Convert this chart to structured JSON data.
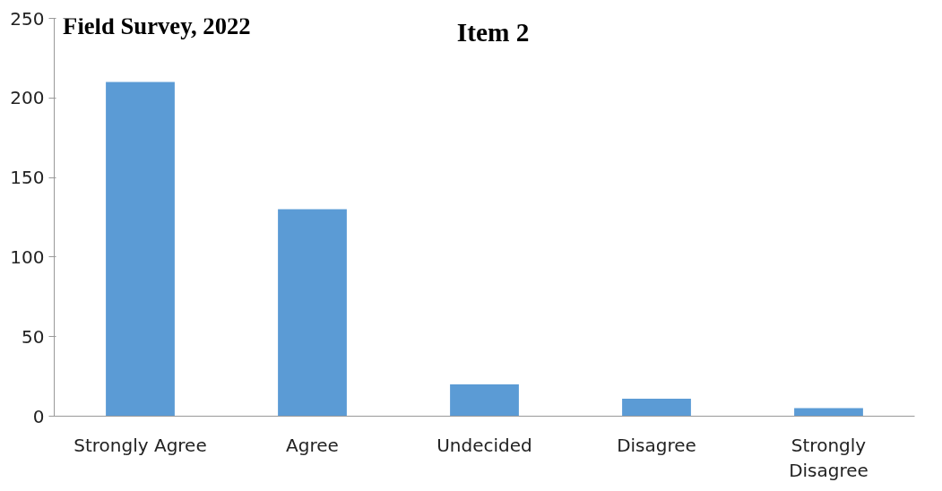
{
  "chart_data": {
    "type": "bar",
    "title": "Item 2",
    "annotations": [
      "Field Survey, 2022"
    ],
    "categories": [
      "Strongly Agree",
      "Agree",
      "Undecided",
      "Disagree",
      "Strongly Disagree"
    ],
    "values": [
      210,
      130,
      20,
      11,
      5
    ],
    "color": "#5b9bd5",
    "ylim": [
      0,
      250
    ],
    "yticks": [
      0,
      50,
      100,
      150,
      200,
      250
    ],
    "grid": false
  }
}
